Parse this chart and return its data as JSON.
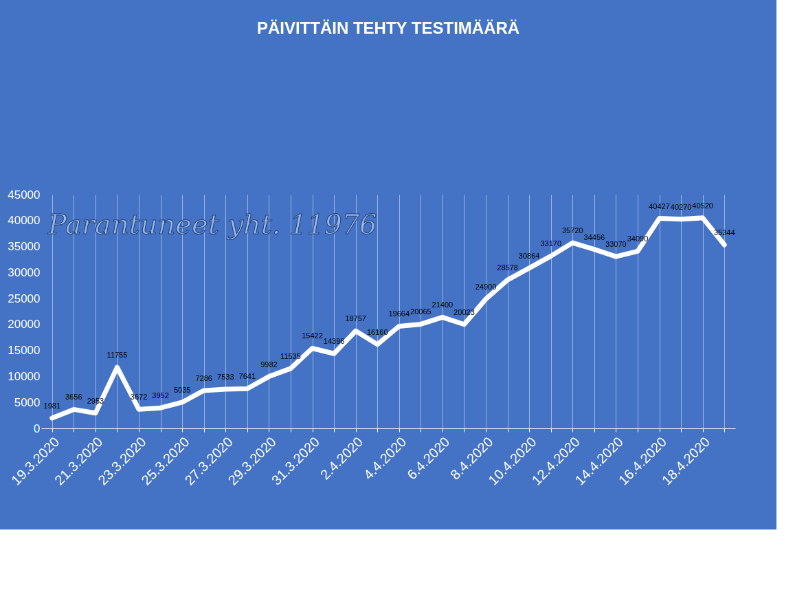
{
  "chart_data": {
    "type": "line",
    "title": "PÄIVITTÄIN TEHTY TESTIMÄÄRÄ",
    "categories": [
      "19.3.2020",
      null,
      "21.3.2020",
      null,
      "23.3.2020",
      null,
      "25.3.2020",
      null,
      "27.3.2020",
      null,
      "29.3.2020",
      null,
      "31.3.2020",
      null,
      "2.4.2020",
      null,
      "4.4.2020",
      null,
      "6.4.2020",
      null,
      "8.4.2020",
      null,
      "10.4.2020",
      null,
      "12.4.2020",
      null,
      "14.4.2020",
      null,
      "16.4.2020",
      null,
      "18.4.2020",
      null
    ],
    "values": [
      1981,
      3656,
      2953,
      11755,
      3672,
      3952,
      5035,
      7286,
      7533,
      7641,
      9982,
      11535,
      15422,
      14396,
      18757,
      16160,
      19664,
      20065,
      21400,
      20023,
      24900,
      28578,
      30864,
      33170,
      35720,
      34456,
      33070,
      34090,
      40427,
      40270,
      40520,
      35344
    ],
    "color": "#ffffff",
    "ylim": [
      0,
      45000
    ],
    "yticks": [
      0,
      5000,
      10000,
      15000,
      20000,
      25000,
      30000,
      35000,
      40000,
      45000
    ],
    "grid": "x",
    "marker": "none",
    "line_style": "solid",
    "data_labels": true,
    "annotations": [
      "Parantuneet yht. 11976"
    ]
  }
}
